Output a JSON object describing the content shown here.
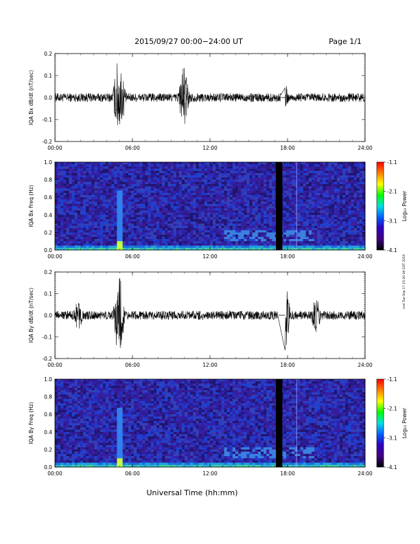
{
  "header": {
    "title": "2015/09/27  00:00−24:00 UT",
    "page": "Page 1/1"
  },
  "footer": {
    "xlabel": "Universal Time (hh:mm)",
    "side_note": "mei Tue Sep 17 15:20:49 EDT 2019"
  },
  "colorbar": {
    "label": "Log₁₀ Power",
    "ticks": [
      "-1.1",
      "-2.1",
      "-3.1",
      "-4.1"
    ],
    "colors": [
      "#ff0000",
      "#ff8000",
      "#ffff00",
      "#00ff00",
      "#00e0e0",
      "#0060ff",
      "#3000c0",
      "#400080",
      "#000000"
    ]
  },
  "chart_data": [
    {
      "type": "line",
      "ylabel": "IQA Bx dB/dt (nT/sec)",
      "ylim": [
        -0.2,
        0.2
      ],
      "y_ticks": [
        "0.2",
        "0.1",
        "0.0",
        "-0.1",
        "-0.2"
      ],
      "x_ticks": [
        "00:00",
        "06:00",
        "12:00",
        "18:00",
        "24:00"
      ],
      "x_range_hours": [
        0,
        24
      ],
      "gap_hours": [
        17.5,
        17.8
      ],
      "bursts": [
        {
          "t": 4.9,
          "amp": 0.2
        },
        {
          "t": 5.1,
          "amp": 0.15
        },
        {
          "t": 9.9,
          "amp": 0.13
        },
        {
          "t": 10.0,
          "amp": -0.16
        },
        {
          "t": 17.8,
          "amp": 0.07
        }
      ],
      "base_noise": 0.02
    },
    {
      "type": "heatmap",
      "ylabel": "IQA Bx Freq (Hz)",
      "ylim": [
        0.0,
        1.0
      ],
      "y_ticks": [
        "1.0",
        "0.8",
        "0.6",
        "0.4",
        "0.2",
        "0.0"
      ],
      "x_ticks": [
        "00:00",
        "06:00",
        "12:00",
        "18:00",
        "24:00"
      ],
      "colorbar_range": [
        -4.1,
        -1.1
      ],
      "gap_hours": [
        17.1,
        17.6
      ],
      "bright_event_hours": [
        4.9,
        5.0
      ]
    },
    {
      "type": "line",
      "ylabel": "IQA By dB/dt (nT/sec)",
      "ylim": [
        -0.2,
        0.2
      ],
      "y_ticks": [
        "0.2",
        "0.1",
        "0.0",
        "-0.1",
        "-0.2"
      ],
      "x_ticks": [
        "00:00",
        "06:00",
        "12:00",
        "18:00",
        "24:00"
      ],
      "x_range_hours": [
        0,
        24
      ],
      "gap_hours": [
        17.3,
        17.8
      ],
      "bursts": [
        {
          "t": 4.9,
          "amp": 0.2
        },
        {
          "t": 5.0,
          "amp": -0.2
        },
        {
          "t": 1.8,
          "amp": 0.08
        },
        {
          "t": 17.8,
          "amp": 0.2
        },
        {
          "t": 20.2,
          "amp": 0.1
        }
      ],
      "base_noise": 0.02
    },
    {
      "type": "heatmap",
      "ylabel": "IQA By Freq (Hz)",
      "ylim": [
        0.0,
        1.0
      ],
      "y_ticks": [
        "1.0",
        "0.8",
        "0.6",
        "0.4",
        "0.2",
        "0.0"
      ],
      "x_ticks": [
        "00:00",
        "06:00",
        "12:00",
        "18:00",
        "24:00"
      ],
      "colorbar_range": [
        -4.1,
        -1.1
      ],
      "gap_hours": [
        17.1,
        17.6
      ],
      "bright_event_hours": [
        4.9,
        5.0
      ]
    }
  ]
}
